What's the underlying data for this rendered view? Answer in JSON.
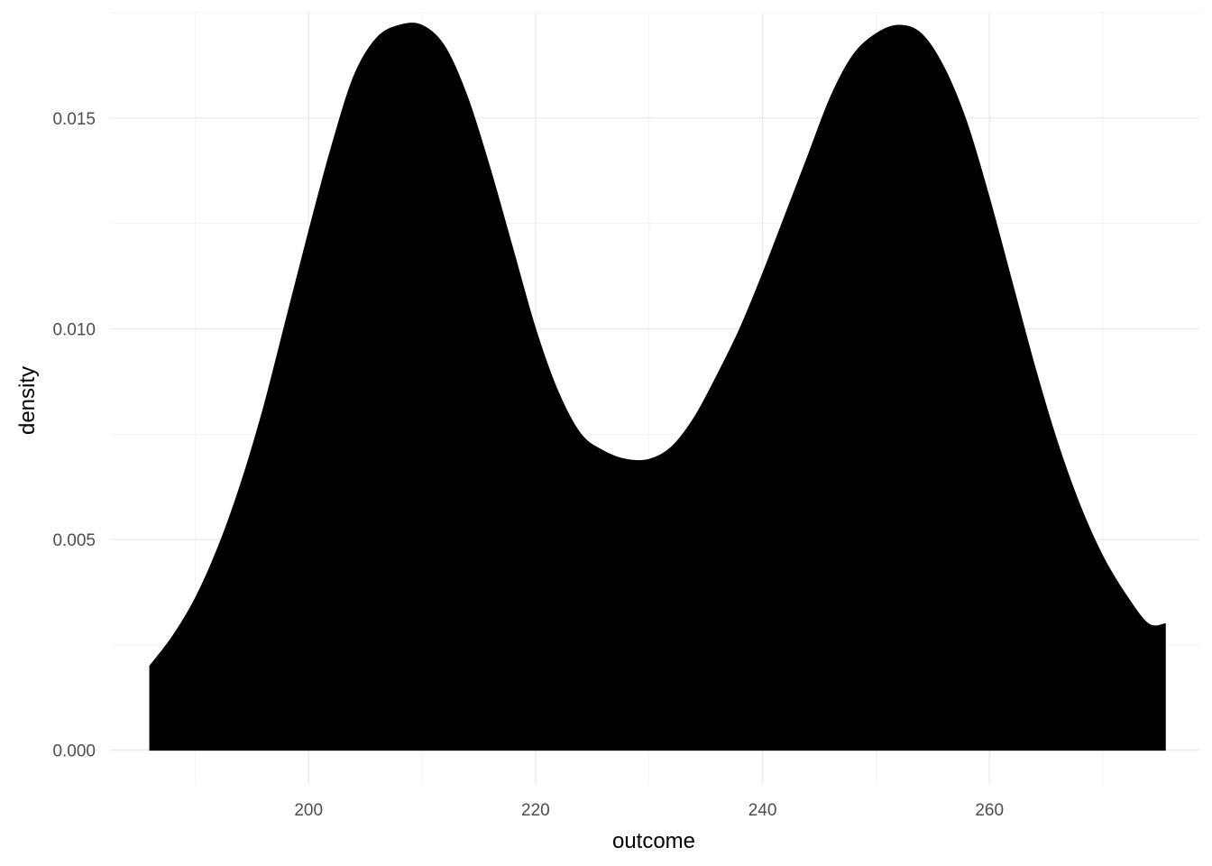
{
  "chart_data": {
    "type": "area",
    "title": "",
    "xlabel": "outcome",
    "ylabel": "density",
    "xlim": [
      182.5,
      278.5
    ],
    "ylim": [
      -0.0008,
      0.0175
    ],
    "x_ticks": [
      200,
      220,
      240,
      260
    ],
    "x_tick_labels": [
      "200",
      "220",
      "240",
      "260"
    ],
    "y_ticks": [
      0.0,
      0.005,
      0.01,
      0.015
    ],
    "y_tick_labels": [
      "0.000",
      "0.005",
      "0.010",
      "0.015"
    ],
    "grid": true,
    "fill_color": "#000000",
    "series": [
      {
        "x": [
          186,
          188,
          190,
          192,
          194,
          196,
          198,
          200,
          202,
          204,
          206,
          208,
          210,
          212,
          214,
          216,
          218,
          220,
          222,
          224,
          226,
          228,
          230,
          232,
          234,
          236,
          238,
          240,
          242,
          244,
          246,
          248,
          250,
          252,
          254,
          256,
          258,
          260,
          262,
          264,
          266,
          268,
          270,
          272,
          274,
          275.5
        ],
        "y": [
          0.002,
          0.0027,
          0.0036,
          0.0048,
          0.0063,
          0.0081,
          0.0102,
          0.0123,
          0.0143,
          0.016,
          0.0169,
          0.0172,
          0.0172,
          0.0167,
          0.0155,
          0.0138,
          0.0119,
          0.01,
          0.0085,
          0.0075,
          0.0071,
          0.0069,
          0.0069,
          0.0072,
          0.0079,
          0.0089,
          0.01,
          0.0113,
          0.0127,
          0.0141,
          0.0155,
          0.0165,
          0.017,
          0.0172,
          0.017,
          0.0162,
          0.0149,
          0.0131,
          0.0111,
          0.0091,
          0.0073,
          0.0058,
          0.0046,
          0.0037,
          0.003,
          0.003
        ]
      }
    ]
  }
}
